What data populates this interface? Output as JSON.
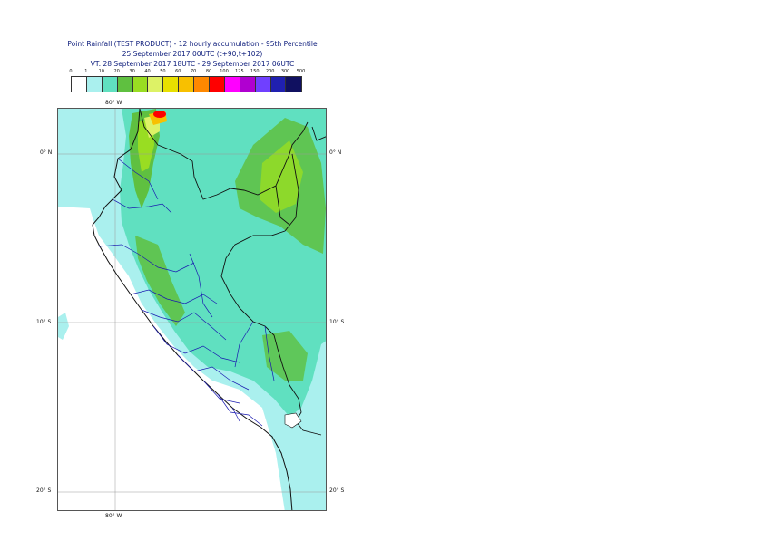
{
  "title": {
    "line1": "Point Rainfall (TEST PRODUCT) - 12 hourly accumulation - 95th Percentile",
    "line2": "25 September 2017 00UTC (t+90,t+102)",
    "line3": "VT: 28 September 2017 18UTC - 29 September 2017 06UTC"
  },
  "legend": {
    "labels": [
      "0",
      "1",
      "10",
      "20",
      "30",
      "40",
      "50",
      "60",
      "70",
      "80",
      "100",
      "125",
      "150",
      "200",
      "300",
      "500"
    ],
    "colors": [
      "#ffffff",
      "#aaf0ee",
      "#60e0c0",
      "#5fc040",
      "#99dd22",
      "#ddf266",
      "#e8e000",
      "#f8c000",
      "#ff8800",
      "#ff0000",
      "#ff00ff",
      "#b000d0",
      "#7040ff",
      "#2020b0",
      "#101060"
    ]
  },
  "axes": {
    "lon_top": "80° W",
    "lon_bottom": "80° W",
    "lat_0_left": "0° N",
    "lat_0_right": "0° N",
    "lat_10_left": "10° S",
    "lat_10_right": "10° S",
    "lat_20_left": "20° S",
    "lat_20_right": "20° S"
  }
}
